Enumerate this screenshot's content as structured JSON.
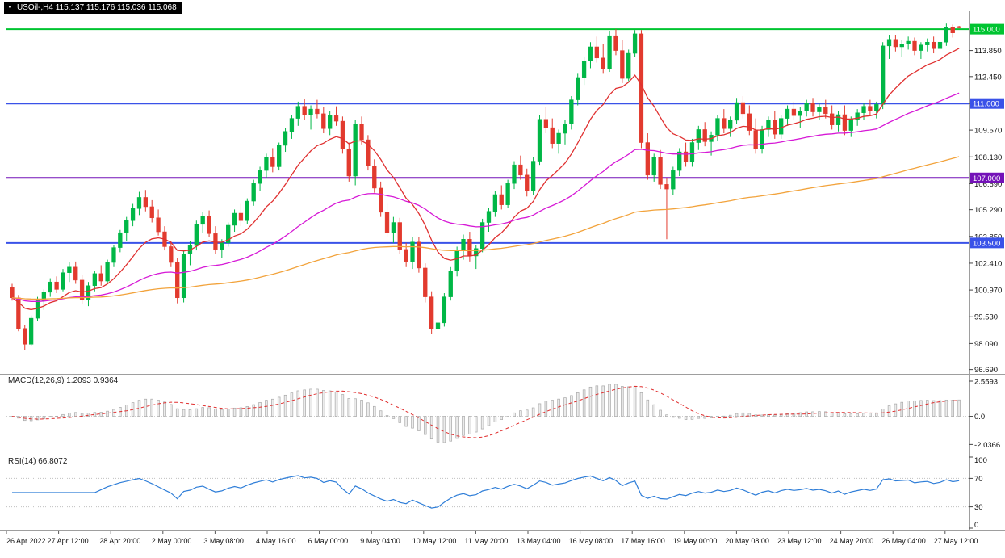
{
  "title_bar": {
    "text": "USOil-,H4 115.137 115.176 115.036 115.068"
  },
  "indicators": {
    "macd": {
      "label": "MACD(12,26,9) 1.2093 0.9364",
      "axis_ticks": [
        "2.5593",
        "0.0",
        "-2.0366"
      ]
    },
    "rsi": {
      "label": "RSI(14) 66.8072",
      "axis_ticks": [
        "100",
        "70",
        "30",
        "0"
      ]
    }
  },
  "colors": {
    "background": "#ffffff",
    "bull": "#00b746",
    "bear": "#e23a2e",
    "macd_hist_fill": "#ececec",
    "macd_hist_stroke": "#a8a8a8",
    "macd_signal": "#e03030",
    "rsi_line": "#2f7ed8",
    "grid": "#9e9e9e",
    "axis_text": "#111111"
  },
  "chart_data": {
    "type": "candlestick",
    "symbol": "USOil-",
    "timeframe": "H4",
    "current_ohlc": {
      "open": 115.137,
      "high": 115.176,
      "low": 115.036,
      "close": 115.068
    },
    "price_range": [
      96.5,
      115.7
    ],
    "price_axis_ticks": [
      "113.850",
      "112.450",
      "111.000",
      "109.570",
      "108.130",
      "106.690",
      "105.290",
      "103.850",
      "102.410",
      "100.970",
      "99.530",
      "98.090",
      "96.690"
    ],
    "hlines": [
      {
        "label": "115.000",
        "price": 115.0,
        "color": "#00c431",
        "width": 2
      },
      {
        "label": "111.000",
        "price": 111.0,
        "color": "#3a52e8",
        "width": 2
      },
      {
        "label": "107.000",
        "price": 107.0,
        "color": "#7412b8",
        "width": 2
      },
      {
        "label": "103.500",
        "price": 103.5,
        "color": "#3a52e8",
        "width": 2
      }
    ],
    "moving_averages": [
      {
        "period": 13,
        "color": "#e03030"
      },
      {
        "period": 50,
        "color": "#d619d6"
      },
      {
        "period": 150,
        "color": "#f2a33c"
      }
    ],
    "x_axis_labels": [
      "26 Apr 2022",
      "27 Apr 12:00",
      "28 Apr 20:00",
      "2 May 00:00",
      "3 May 08:00",
      "4 May 16:00",
      "6 May 00:00",
      "9 May 04:00",
      "10 May 12:00",
      "11 May 20:00",
      "13 May 04:00",
      "16 May 08:00",
      "17 May 16:00",
      "19 May 00:00",
      "20 May 08:00",
      "23 May 12:00",
      "24 May 20:00",
      "26 May 04:00",
      "27 May 12:00"
    ],
    "macd": {
      "params": [
        12,
        26,
        9
      ],
      "main_value": 1.2093,
      "signal_value": 0.9364,
      "range": [
        2.9,
        -2.6
      ]
    },
    "rsi": {
      "period": 14,
      "value": 66.8072,
      "levels": [
        70,
        30
      ]
    },
    "candles": [
      [
        101.1,
        101.3,
        100.4,
        100.55
      ],
      [
        100.55,
        100.7,
        98.75,
        98.9
      ],
      [
        98.9,
        99.1,
        97.75,
        98.05
      ],
      [
        98.05,
        99.6,
        97.95,
        99.45
      ],
      [
        99.45,
        100.6,
        99.3,
        100.4
      ],
      [
        100.4,
        101.0,
        99.9,
        100.85
      ],
      [
        100.85,
        101.6,
        100.6,
        101.4
      ],
      [
        101.4,
        101.7,
        100.8,
        101.0
      ],
      [
        101.0,
        102.1,
        100.9,
        101.9
      ],
      [
        101.9,
        102.45,
        101.4,
        102.2
      ],
      [
        102.2,
        102.5,
        101.3,
        101.5
      ],
      [
        101.5,
        101.8,
        100.2,
        100.45
      ],
      [
        100.45,
        101.4,
        100.1,
        101.2
      ],
      [
        101.2,
        102.0,
        100.9,
        101.85
      ],
      [
        101.85,
        102.3,
        101.2,
        101.45
      ],
      [
        101.45,
        102.6,
        101.3,
        102.45
      ],
      [
        102.45,
        103.4,
        102.2,
        103.25
      ],
      [
        103.25,
        104.2,
        103.0,
        104.05
      ],
      [
        104.05,
        104.9,
        103.6,
        104.7
      ],
      [
        104.7,
        105.6,
        104.4,
        105.35
      ],
      [
        105.35,
        106.25,
        105.0,
        105.95
      ],
      [
        105.95,
        106.35,
        105.2,
        105.45
      ],
      [
        105.45,
        105.8,
        104.6,
        104.85
      ],
      [
        104.85,
        105.3,
        103.9,
        104.1
      ],
      [
        104.1,
        104.4,
        103.1,
        103.3
      ],
      [
        103.3,
        103.6,
        102.2,
        102.45
      ],
      [
        102.45,
        102.7,
        100.25,
        100.55
      ],
      [
        100.55,
        103.1,
        100.3,
        102.9
      ],
      [
        102.9,
        103.6,
        102.3,
        103.35
      ],
      [
        103.35,
        104.7,
        103.1,
        104.5
      ],
      [
        104.5,
        105.15,
        104.05,
        104.95
      ],
      [
        104.95,
        105.25,
        103.8,
        104.0
      ],
      [
        104.0,
        104.4,
        102.9,
        103.15
      ],
      [
        103.15,
        103.7,
        102.7,
        103.5
      ],
      [
        103.5,
        104.6,
        103.3,
        104.45
      ],
      [
        104.45,
        105.3,
        104.1,
        105.1
      ],
      [
        105.1,
        105.6,
        104.4,
        104.7
      ],
      [
        104.7,
        105.9,
        104.5,
        105.75
      ],
      [
        105.75,
        106.9,
        105.5,
        106.7
      ],
      [
        106.7,
        107.6,
        106.3,
        107.4
      ],
      [
        107.4,
        108.3,
        107.0,
        108.1
      ],
      [
        108.1,
        108.6,
        107.3,
        107.6
      ],
      [
        107.6,
        108.9,
        107.4,
        108.75
      ],
      [
        108.75,
        109.7,
        108.4,
        109.5
      ],
      [
        109.5,
        110.4,
        109.1,
        110.2
      ],
      [
        110.2,
        111.1,
        109.8,
        110.85
      ],
      [
        110.85,
        111.25,
        110.1,
        110.4
      ],
      [
        110.4,
        110.9,
        109.6,
        110.7
      ],
      [
        110.7,
        111.2,
        110.2,
        110.45
      ],
      [
        110.45,
        110.8,
        109.4,
        109.65
      ],
      [
        109.65,
        110.6,
        109.3,
        110.35
      ],
      [
        110.35,
        110.85,
        109.8,
        110.05
      ],
      [
        110.05,
        110.3,
        108.3,
        108.55
      ],
      [
        108.55,
        108.9,
        106.8,
        107.1
      ],
      [
        107.1,
        110.1,
        106.6,
        109.9
      ],
      [
        109.9,
        110.3,
        108.8,
        109.05
      ],
      [
        109.05,
        109.3,
        107.4,
        107.65
      ],
      [
        107.65,
        108.0,
        106.2,
        106.45
      ],
      [
        106.45,
        106.8,
        104.9,
        105.15
      ],
      [
        105.15,
        105.6,
        103.8,
        104.05
      ],
      [
        104.05,
        104.9,
        103.5,
        104.6
      ],
      [
        104.6,
        104.85,
        102.9,
        103.15
      ],
      [
        103.15,
        103.5,
        102.2,
        102.5
      ],
      [
        102.5,
        103.8,
        102.1,
        103.55
      ],
      [
        103.55,
        103.8,
        101.9,
        102.15
      ],
      [
        102.15,
        102.4,
        100.3,
        100.6
      ],
      [
        100.6,
        100.9,
        98.6,
        98.9
      ],
      [
        98.9,
        99.4,
        98.15,
        99.2
      ],
      [
        99.2,
        100.8,
        99.0,
        100.6
      ],
      [
        100.6,
        102.2,
        100.4,
        102.0
      ],
      [
        102.0,
        103.3,
        101.7,
        103.1
      ],
      [
        103.1,
        103.95,
        102.6,
        103.7
      ],
      [
        103.7,
        104.1,
        102.5,
        102.8
      ],
      [
        102.8,
        103.4,
        102.1,
        103.2
      ],
      [
        103.2,
        104.8,
        103.0,
        104.6
      ],
      [
        104.6,
        105.4,
        104.1,
        105.2
      ],
      [
        105.2,
        106.3,
        104.9,
        106.1
      ],
      [
        106.1,
        106.6,
        105.3,
        105.55
      ],
      [
        105.55,
        106.9,
        105.4,
        106.7
      ],
      [
        106.7,
        107.9,
        106.4,
        107.7
      ],
      [
        107.7,
        108.2,
        106.9,
        107.15
      ],
      [
        107.15,
        107.5,
        106.0,
        106.3
      ],
      [
        106.3,
        108.1,
        106.1,
        107.9
      ],
      [
        107.9,
        110.4,
        107.7,
        110.15
      ],
      [
        110.15,
        110.8,
        109.4,
        109.7
      ],
      [
        109.7,
        110.2,
        108.6,
        108.85
      ],
      [
        108.85,
        109.6,
        108.3,
        109.4
      ],
      [
        109.4,
        110.1,
        108.8,
        109.9
      ],
      [
        109.9,
        111.4,
        109.6,
        111.2
      ],
      [
        111.2,
        112.6,
        110.9,
        112.4
      ],
      [
        112.4,
        113.5,
        112.0,
        113.3
      ],
      [
        113.3,
        114.3,
        112.9,
        114.05
      ],
      [
        114.05,
        114.6,
        113.2,
        113.45
      ],
      [
        113.45,
        114.2,
        112.6,
        112.85
      ],
      [
        112.85,
        114.9,
        112.7,
        114.65
      ],
      [
        114.65,
        115.0,
        113.6,
        113.85
      ],
      [
        113.85,
        114.4,
        112.1,
        112.35
      ],
      [
        112.35,
        113.9,
        112.2,
        113.7
      ],
      [
        113.7,
        114.95,
        113.5,
        114.75
      ],
      [
        114.75,
        114.95,
        108.6,
        108.9
      ],
      [
        108.9,
        109.4,
        106.9,
        107.15
      ],
      [
        107.15,
        108.3,
        106.8,
        108.1
      ],
      [
        108.1,
        108.5,
        106.4,
        106.65
      ],
      [
        106.65,
        107.0,
        103.7,
        106.4
      ],
      [
        106.4,
        107.6,
        106.1,
        107.4
      ],
      [
        107.4,
        108.6,
        107.1,
        108.4
      ],
      [
        108.4,
        108.9,
        107.6,
        107.85
      ],
      [
        107.85,
        109.1,
        107.6,
        108.9
      ],
      [
        108.9,
        109.8,
        108.5,
        109.6
      ],
      [
        109.6,
        110.0,
        108.7,
        108.95
      ],
      [
        108.95,
        109.5,
        108.2,
        109.3
      ],
      [
        109.3,
        110.4,
        109.0,
        110.2
      ],
      [
        110.2,
        110.7,
        109.4,
        109.65
      ],
      [
        109.65,
        110.3,
        109.2,
        110.1
      ],
      [
        110.1,
        111.3,
        109.9,
        111.05
      ],
      [
        111.05,
        111.4,
        110.2,
        110.45
      ],
      [
        110.45,
        110.9,
        109.3,
        109.55
      ],
      [
        109.55,
        110.2,
        108.3,
        108.55
      ],
      [
        108.55,
        109.8,
        108.3,
        109.6
      ],
      [
        109.6,
        110.3,
        109.2,
        110.1
      ],
      [
        110.1,
        110.6,
        109.1,
        109.35
      ],
      [
        109.35,
        110.4,
        109.1,
        110.2
      ],
      [
        110.2,
        110.9,
        109.8,
        110.7
      ],
      [
        110.7,
        111.1,
        110.1,
        110.35
      ],
      [
        110.35,
        110.8,
        109.7,
        110.6
      ],
      [
        110.6,
        111.2,
        110.3,
        111.0
      ],
      [
        111.0,
        111.3,
        110.3,
        110.55
      ],
      [
        110.55,
        111.0,
        110.1,
        110.8
      ],
      [
        110.8,
        111.2,
        110.2,
        110.45
      ],
      [
        110.45,
        110.9,
        109.6,
        109.85
      ],
      [
        109.85,
        110.6,
        109.5,
        110.4
      ],
      [
        110.4,
        110.9,
        109.3,
        109.55
      ],
      [
        109.55,
        110.3,
        109.2,
        110.15
      ],
      [
        110.15,
        110.7,
        109.8,
        110.5
      ],
      [
        110.5,
        111.0,
        110.1,
        110.85
      ],
      [
        110.85,
        111.2,
        110.4,
        110.6
      ],
      [
        110.6,
        111.1,
        110.2,
        110.95
      ],
      [
        110.95,
        114.3,
        110.7,
        114.1
      ],
      [
        114.1,
        114.7,
        113.4,
        114.45
      ],
      [
        114.45,
        114.7,
        113.8,
        114.05
      ],
      [
        114.05,
        114.4,
        113.5,
        114.2
      ],
      [
        114.2,
        114.6,
        113.9,
        114.35
      ],
      [
        114.35,
        114.55,
        113.6,
        113.85
      ],
      [
        113.85,
        114.3,
        113.4,
        114.15
      ],
      [
        114.15,
        114.5,
        113.8,
        114.3
      ],
      [
        114.3,
        114.6,
        113.7,
        113.95
      ],
      [
        113.95,
        114.45,
        113.6,
        114.3
      ],
      [
        114.3,
        115.3,
        114.1,
        115.1
      ],
      [
        115.1,
        115.25,
        114.55,
        114.8
      ],
      [
        115.14,
        115.18,
        115.04,
        115.07
      ]
    ]
  }
}
